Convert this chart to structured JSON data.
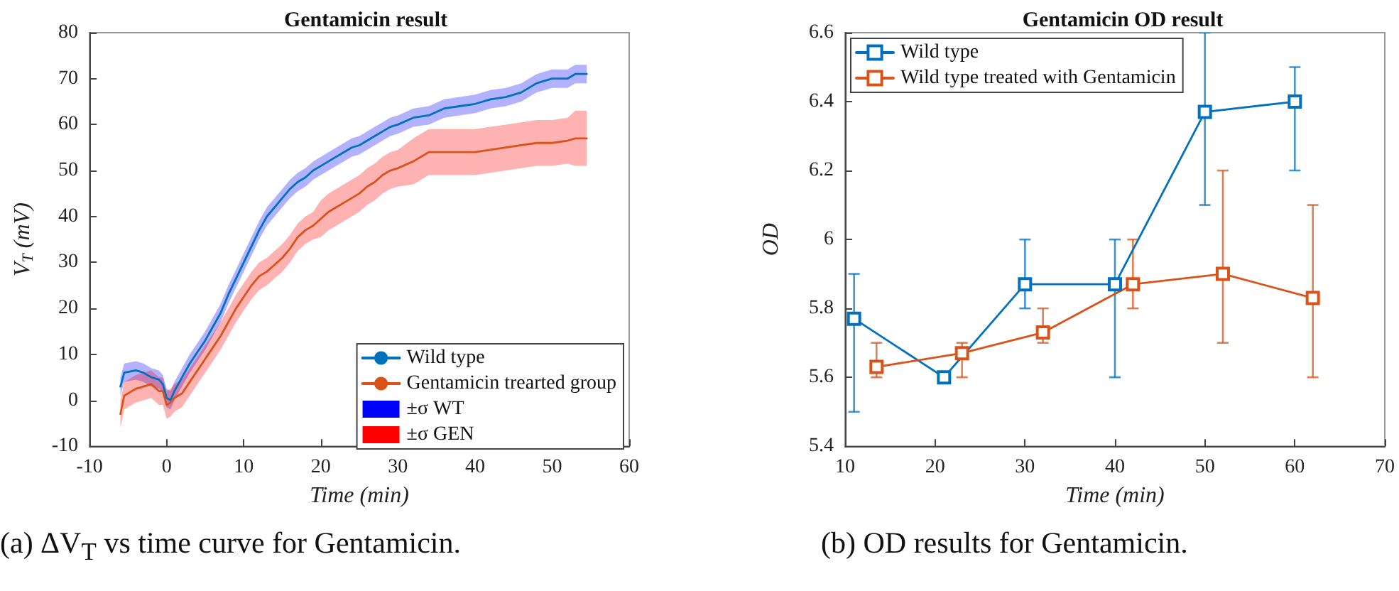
{
  "chart_data": [
    {
      "type": "line",
      "title": "Gentamicin result",
      "xlabel": "Time (min)",
      "ylabel": "V$_{T}$ (mV)",
      "x": [
        -6,
        -5.5,
        -4,
        -3,
        -2,
        -1,
        -0.5,
        0,
        0.5,
        1,
        2,
        3,
        4,
        5,
        6,
        7,
        8,
        9,
        10,
        11,
        12,
        13,
        14,
        15,
        16,
        17,
        18,
        19,
        20,
        21,
        22,
        23,
        24,
        25,
        26,
        27,
        28,
        29,
        30,
        32,
        34,
        36,
        38,
        40,
        42,
        44,
        46,
        48,
        50,
        52,
        53,
        54.5
      ],
      "series": [
        {
          "name": "Wild type",
          "color": "#0072bd",
          "values": [
            3,
            6,
            6.5,
            6,
            5,
            4.5,
            3.5,
            0.5,
            0,
            2,
            5,
            8,
            10.5,
            13,
            16,
            19,
            23,
            26.5,
            30,
            33.5,
            37,
            40,
            42,
            44,
            46,
            47.5,
            48.5,
            50,
            51,
            52,
            53,
            54,
            55,
            55.5,
            56.5,
            57.5,
            58.5,
            59.5,
            60,
            61.5,
            62,
            63.5,
            64,
            64.5,
            65.5,
            66,
            67,
            69,
            70,
            70,
            71,
            71
          ]
        },
        {
          "name": "Gentamicin trearted group",
          "color": "#d95319",
          "values": [
            -3,
            1,
            2.5,
            3,
            3.5,
            2,
            2,
            -1,
            -0.5,
            0.5,
            1.5,
            4,
            6.5,
            9,
            11.5,
            14,
            17,
            20,
            22.5,
            25,
            27,
            28,
            29.5,
            31,
            33,
            35.5,
            37,
            38,
            39.5,
            41,
            42,
            43,
            44,
            45,
            46.5,
            47.5,
            49,
            50,
            50.5,
            52,
            54,
            54,
            54,
            54,
            54.5,
            55,
            55.5,
            56,
            56,
            56.5,
            57,
            57
          ]
        },
        {
          "name": "±σ WT",
          "color": "#0000ff",
          "values": [
            null,
            null,
            null,
            null,
            null,
            null,
            null,
            null,
            null,
            null,
            null,
            null,
            null,
            null,
            null,
            null,
            null,
            null,
            null,
            null,
            null,
            null,
            null,
            null,
            null,
            null,
            null,
            null,
            null,
            null,
            null,
            null,
            null,
            null,
            null,
            null,
            null,
            null,
            null,
            null,
            null,
            null,
            null,
            null,
            null,
            null,
            null,
            null,
            null,
            null,
            null,
            null
          ],
          "lower": [
            1,
            4,
            4.5,
            4,
            3,
            2.5,
            1.5,
            -1.5,
            -2,
            0,
            3,
            6,
            8.5,
            11,
            14,
            17,
            21,
            24.5,
            28,
            31.5,
            35,
            38,
            40,
            42,
            44,
            45.5,
            46.5,
            48,
            49,
            50,
            51,
            52,
            53,
            53.5,
            54.5,
            55.5,
            56.5,
            57.5,
            58,
            59.5,
            60,
            61.5,
            62,
            62.5,
            63.5,
            64,
            65,
            67,
            68,
            68,
            69,
            69
          ],
          "upper": [
            5,
            8,
            8.5,
            8,
            7,
            6.5,
            5.5,
            2.5,
            2,
            4,
            7,
            10,
            12.5,
            15,
            18,
            21,
            25,
            28.5,
            32,
            35.5,
            39,
            42,
            44,
            46,
            48,
            49.5,
            50.5,
            52,
            53,
            54,
            55,
            56,
            57,
            57.5,
            58.5,
            59.5,
            60.5,
            61.5,
            62,
            63.5,
            64,
            65.5,
            66,
            66.5,
            67.5,
            68,
            69,
            71,
            72,
            72,
            73,
            73
          ]
        },
        {
          "name": "±σ GEN",
          "color": "#ff0000",
          "values": [
            null,
            null,
            null,
            null,
            null,
            null,
            null,
            null,
            null,
            null,
            null,
            null,
            null,
            null,
            null,
            null,
            null,
            null,
            null,
            null,
            null,
            null,
            null,
            null,
            null,
            null,
            null,
            null,
            null,
            null,
            null,
            null,
            null,
            null,
            null,
            null,
            null,
            null,
            null,
            null,
            null,
            null,
            null,
            null,
            null,
            null,
            null,
            null,
            null,
            null,
            null,
            null
          ],
          "lower": [
            -6,
            -2,
            -0.5,
            0,
            0.5,
            -1,
            -1,
            -4,
            -3.5,
            -2.5,
            -1.5,
            1,
            3.5,
            6,
            8.5,
            11,
            14,
            17,
            19.5,
            22,
            24,
            25,
            26.5,
            28,
            30,
            32.5,
            34,
            35,
            35.5,
            37,
            38,
            39,
            40,
            41,
            42.5,
            43.5,
            45,
            46,
            46.5,
            47,
            49,
            49,
            49,
            49,
            49.5,
            50,
            50.5,
            51,
            51,
            51.5,
            51,
            51
          ],
          "upper": [
            0,
            4,
            5.5,
            6,
            6.5,
            5,
            5,
            2,
            2.5,
            3.5,
            4.5,
            7,
            9.5,
            12,
            14.5,
            17,
            20,
            23,
            25.5,
            28,
            30,
            31,
            32.5,
            34,
            36,
            38.5,
            40,
            41,
            43.5,
            45,
            46,
            47,
            48,
            49,
            50.5,
            51.5,
            53,
            54,
            54.5,
            57,
            59,
            59,
            59,
            59,
            59.5,
            60,
            60.5,
            61,
            61,
            61.5,
            63,
            63
          ]
        }
      ],
      "xlim": [
        -10,
        60
      ],
      "xticks": [
        -10,
        0,
        10,
        20,
        30,
        40,
        50,
        60
      ],
      "ylim": [
        -10,
        80
      ],
      "yticks": [
        -10,
        0,
        10,
        20,
        30,
        40,
        50,
        60,
        70,
        80
      ],
      "grid": false,
      "legend": "bottom right",
      "marker": "none",
      "line_style": "solid",
      "annotations": [
        "(a) ΔV$_{T}$ vs time curve for Gentamicin."
      ]
    },
    {
      "type": "line",
      "title": "Gentamicin OD result",
      "xlabel": "Time (min)",
      "ylabel": "OD",
      "series": [
        {
          "name": "Wild type",
          "color": "#0072bd",
          "x": [
            11,
            21,
            30,
            40,
            50,
            60
          ],
          "values": [
            5.77,
            5.6,
            5.87,
            5.87,
            6.37,
            6.4
          ],
          "errors": [
            [
              5.5,
              5.9
            ],
            null,
            [
              5.8,
              6.0
            ],
            [
              5.6,
              6.0
            ],
            [
              6.1,
              6.6
            ],
            [
              6.2,
              6.5
            ]
          ]
        },
        {
          "name": "Wild type treated with Gentamicin",
          "color": "#d95319",
          "x": [
            13.5,
            23,
            32,
            42,
            52,
            62
          ],
          "values": [
            5.63,
            5.67,
            5.73,
            5.87,
            5.9,
            5.83
          ],
          "errors": [
            [
              5.6,
              5.7
            ],
            [
              5.6,
              5.7
            ],
            [
              5.7,
              5.8
            ],
            [
              5.8,
              6.0
            ],
            [
              5.7,
              6.2
            ],
            [
              5.6,
              6.1
            ]
          ]
        }
      ],
      "xlim": [
        10,
        70
      ],
      "xticks": [
        10,
        20,
        30,
        40,
        50,
        60,
        70
      ],
      "ylim": [
        5.4,
        6.6
      ],
      "yticks": [
        5.4,
        5.6,
        5.8,
        6,
        6.2,
        6.4,
        6.6
      ],
      "grid": false,
      "legend": "top left",
      "marker": "square",
      "line_style": "solid",
      "annotations": [
        "(b) OD results for Gentamicin."
      ]
    }
  ]
}
